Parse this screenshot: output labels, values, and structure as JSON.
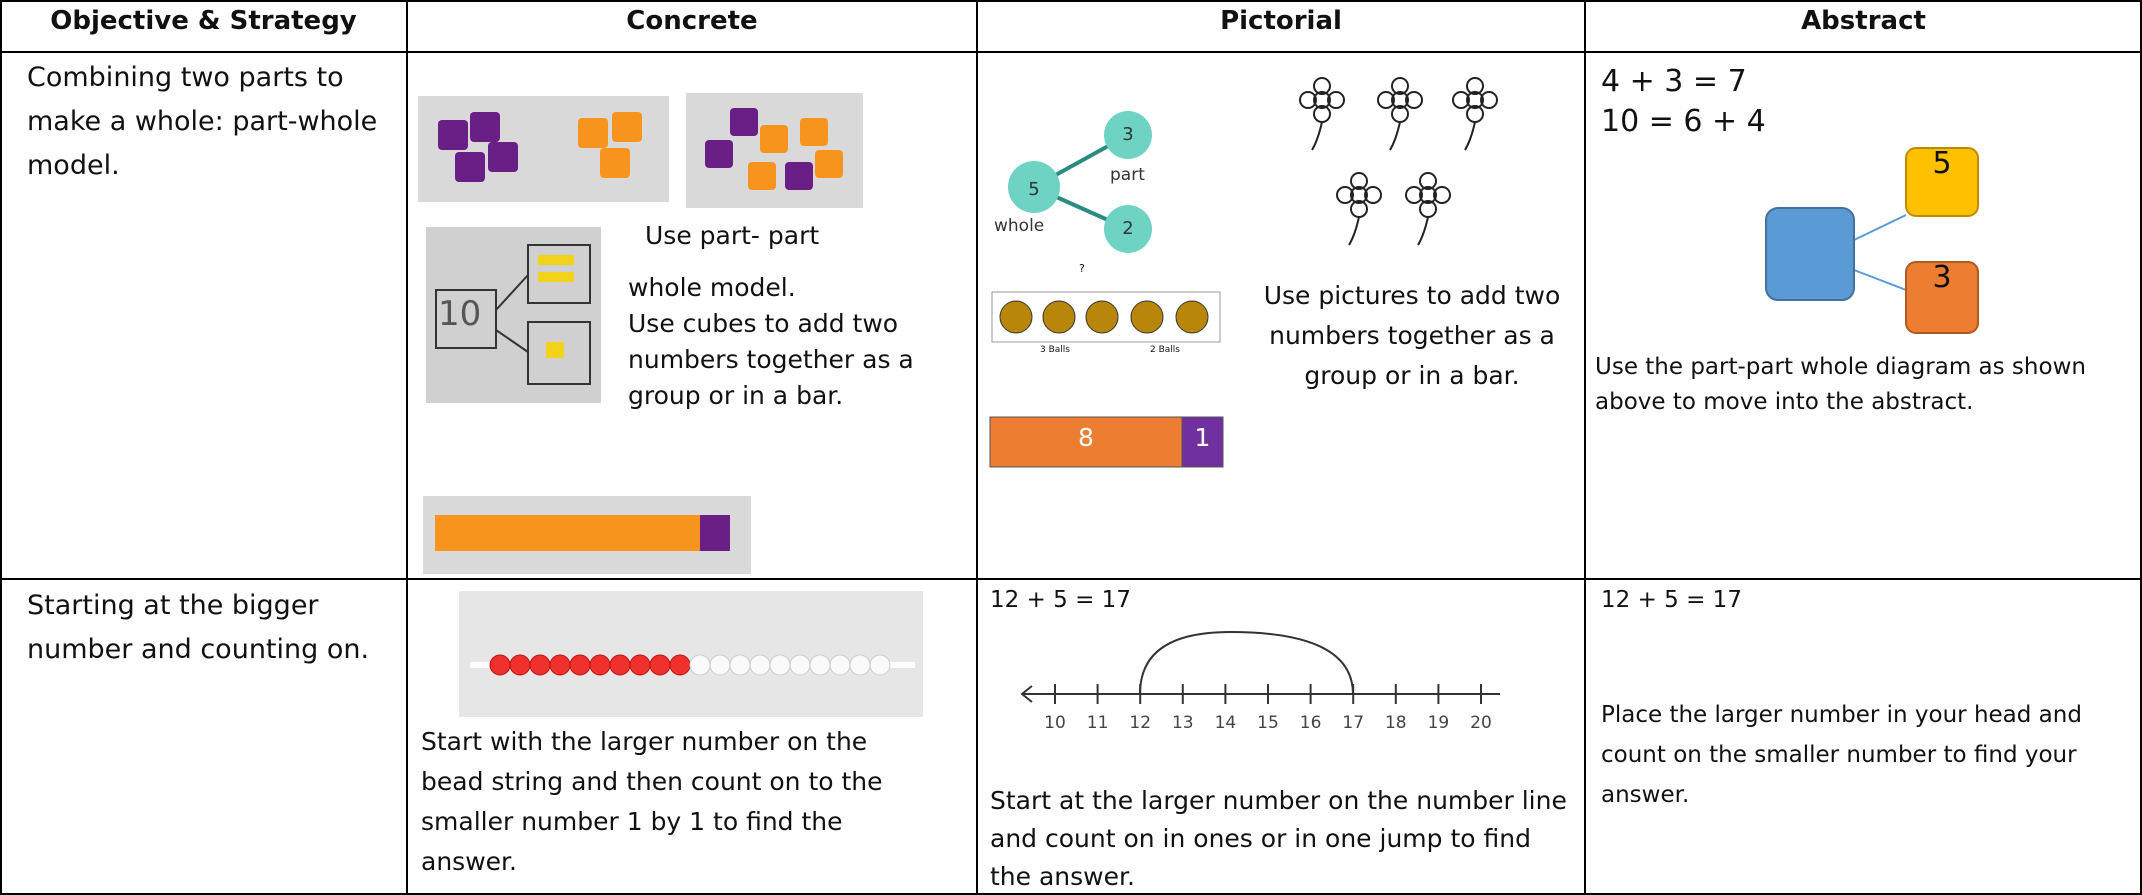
{
  "table": {
    "headers": [
      "Objective & Strategy",
      "Concrete",
      "Pictorial",
      "Abstract"
    ],
    "rows": [
      {
        "objective": "Combining two parts to make a whole: part-whole model.",
        "concrete": {
          "photo_label": "10",
          "lines": [
            "Use part- part",
            "whole model.",
            "Use cubes to add two numbers together as a group or in a bar."
          ]
        },
        "pictorial": {
          "diagram": {
            "whole": "5",
            "whole_label": "whole",
            "part_a": "3",
            "part_label": "part",
            "part_b": "2"
          },
          "frame": {
            "total": "?",
            "left": "3 Balls",
            "right": "2 Balls"
          },
          "bar": [
            "8",
            "1"
          ],
          "text": "Use pictures to add two numbers together as a group or in a bar."
        },
        "abstract": {
          "equations": [
            "4 + 3 = 7",
            "10 = 6 + 4"
          ],
          "boxes": [
            "5",
            "3"
          ],
          "text": "Use the part-part whole diagram as shown above to move into the abstract."
        }
      },
      {
        "objective": "Starting at the bigger number and counting on.",
        "concrete": {
          "text": "Start with the larger number on the bead string and then count on to the smaller number 1 by 1 to find the answer."
        },
        "pictorial": {
          "equation": "12 + 5 = 17",
          "number_line": [
            10,
            11,
            12,
            13,
            14,
            15,
            16,
            17,
            18,
            19,
            20
          ],
          "text": "Start at the larger number on the number line and count on in ones or in one jump to find the answer."
        },
        "abstract": {
          "equation": "12 + 5 = 17",
          "text": "Place the larger number in your head and count on the smaller number to find your answer."
        }
      }
    ]
  }
}
